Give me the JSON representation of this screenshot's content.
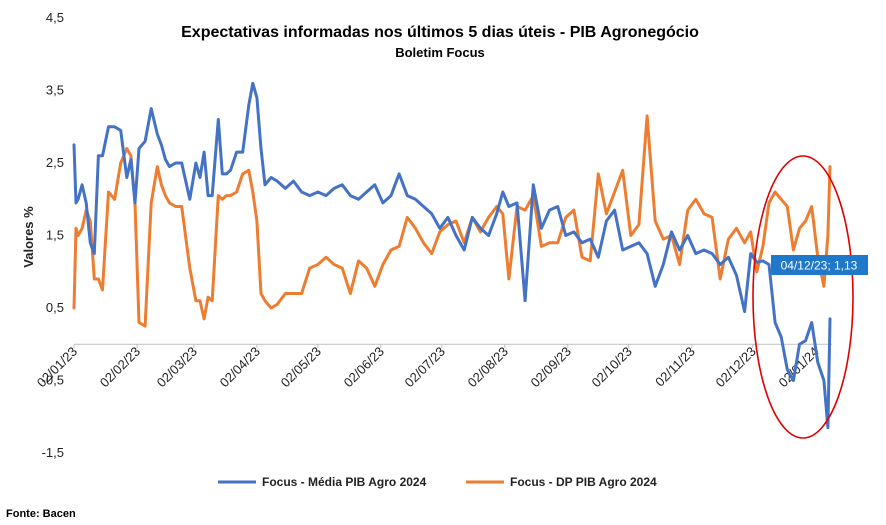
{
  "chart_data": {
    "type": "line",
    "title": "Expectativas informadas nos últimos 5 dias úteis - PIB Agronegócio",
    "subtitle": "Boletim Focus",
    "ylabel": "Valores %",
    "xlabel": "",
    "ylim": [
      -1.5,
      4.5
    ],
    "yticks": [
      "4,5",
      "3,5",
      "2,5",
      "1,5",
      "0,5",
      "-0,5",
      "-1,5"
    ],
    "yticks_values": [
      4.5,
      3.5,
      2.5,
      1.5,
      0.5,
      -0.5,
      -1.5
    ],
    "xlim": [
      "2023-01-02",
      "2024-01-10"
    ],
    "xticks": [
      "02/01/23",
      "02/02/23",
      "02/03/23",
      "02/04/23",
      "02/05/23",
      "02/06/23",
      "02/07/23",
      "02/08/23",
      "02/09/23",
      "02/10/23",
      "02/11/23",
      "02/12/23",
      "02/01/24"
    ],
    "xticks_dates": [
      "2023-01-02",
      "2023-02-02",
      "2023-03-02",
      "2023-04-02",
      "2023-05-02",
      "2023-06-02",
      "2023-07-02",
      "2023-08-02",
      "2023-09-02",
      "2023-10-02",
      "2023-11-02",
      "2023-12-02",
      "2024-01-02"
    ],
    "grid": false,
    "legend": "bottom",
    "annotation": {
      "text": "04/12/23; 1,13",
      "x": "2023-12-04",
      "y": 1.13,
      "series": "Focus - Média PIB Agro 2024"
    },
    "series": [
      {
        "name": "Focus - Média PIB Agro 2024",
        "color": "#4472c4",
        "x": [
          "2023-01-02",
          "2023-01-03",
          "2023-01-04",
          "2023-01-06",
          "2023-01-08",
          "2023-01-10",
          "2023-01-12",
          "2023-01-14",
          "2023-01-16",
          "2023-01-19",
          "2023-01-22",
          "2023-01-25",
          "2023-01-28",
          "2023-01-30",
          "2023-02-01",
          "2023-02-03",
          "2023-02-06",
          "2023-02-09",
          "2023-02-12",
          "2023-02-14",
          "2023-02-16",
          "2023-02-18",
          "2023-02-21",
          "2023-02-24",
          "2023-02-28",
          "2023-03-03",
          "2023-03-05",
          "2023-03-07",
          "2023-03-09",
          "2023-03-11",
          "2023-03-14",
          "2023-03-16",
          "2023-03-18",
          "2023-03-20",
          "2023-03-23",
          "2023-03-26",
          "2023-03-29",
          "2023-03-31",
          "2023-04-02",
          "2023-04-04",
          "2023-04-06",
          "2023-04-09",
          "2023-04-12",
          "2023-04-16",
          "2023-04-20",
          "2023-04-24",
          "2023-04-28",
          "2023-05-02",
          "2023-05-06",
          "2023-05-10",
          "2023-05-14",
          "2023-05-18",
          "2023-05-22",
          "2023-05-26",
          "2023-05-30",
          "2023-06-03",
          "2023-06-07",
          "2023-06-11",
          "2023-06-15",
          "2023-06-19",
          "2023-06-23",
          "2023-06-27",
          "2023-07-01",
          "2023-07-05",
          "2023-07-09",
          "2023-07-13",
          "2023-07-17",
          "2023-07-21",
          "2023-07-25",
          "2023-07-29",
          "2023-08-01",
          "2023-08-04",
          "2023-08-08",
          "2023-08-12",
          "2023-08-16",
          "2023-08-20",
          "2023-08-24",
          "2023-08-28",
          "2023-09-01",
          "2023-09-05",
          "2023-09-09",
          "2023-09-13",
          "2023-09-17",
          "2023-09-21",
          "2023-09-25",
          "2023-09-29",
          "2023-10-03",
          "2023-10-07",
          "2023-10-11",
          "2023-10-15",
          "2023-10-19",
          "2023-10-23",
          "2023-10-27",
          "2023-10-31",
          "2023-11-04",
          "2023-11-08",
          "2023-11-12",
          "2023-11-16",
          "2023-11-20",
          "2023-11-24",
          "2023-11-28",
          "2023-12-01",
          "2023-12-04",
          "2023-12-07",
          "2023-12-10",
          "2023-12-13",
          "2023-12-16",
          "2023-12-19",
          "2023-12-22",
          "2023-12-25",
          "2023-12-28",
          "2023-12-31",
          "2024-01-03",
          "2024-01-06",
          "2024-01-08",
          "2024-01-09"
        ],
        "values": [
          2.75,
          1.95,
          2.0,
          2.2,
          1.95,
          1.4,
          1.25,
          2.6,
          2.6,
          3.0,
          3.0,
          2.95,
          2.3,
          2.55,
          1.95,
          2.7,
          2.8,
          3.25,
          2.9,
          2.75,
          2.55,
          2.45,
          2.5,
          2.5,
          2.0,
          2.5,
          2.3,
          2.65,
          2.05,
          2.05,
          3.1,
          2.35,
          2.35,
          2.4,
          2.65,
          2.65,
          3.3,
          3.6,
          3.4,
          2.7,
          2.2,
          2.3,
          2.25,
          2.15,
          2.25,
          2.1,
          2.05,
          2.1,
          2.05,
          2.15,
          2.2,
          2.05,
          2.0,
          2.1,
          2.2,
          1.95,
          2.05,
          2.35,
          2.05,
          2.0,
          1.9,
          1.8,
          1.6,
          1.75,
          1.5,
          1.3,
          1.75,
          1.6,
          1.5,
          1.8,
          2.1,
          1.9,
          1.95,
          0.6,
          2.2,
          1.6,
          1.85,
          1.9,
          1.5,
          1.55,
          1.4,
          1.45,
          1.2,
          1.7,
          1.85,
          1.3,
          1.35,
          1.4,
          1.25,
          0.8,
          1.1,
          1.55,
          1.3,
          1.5,
          1.25,
          1.3,
          1.25,
          1.1,
          1.2,
          0.95,
          0.45,
          1.25,
          1.13,
          1.15,
          1.1,
          0.3,
          0.1,
          -0.35,
          -0.5,
          0.0,
          0.05,
          0.3,
          -0.25,
          -0.5,
          -1.15,
          0.35
        ]
      },
      {
        "name": "Focus - DP PIB Agro 2024",
        "color": "#ed7d31",
        "x": [
          "2023-01-02",
          "2023-01-03",
          "2023-01-04",
          "2023-01-06",
          "2023-01-08",
          "2023-01-10",
          "2023-01-12",
          "2023-01-14",
          "2023-01-16",
          "2023-01-19",
          "2023-01-22",
          "2023-01-25",
          "2023-01-28",
          "2023-01-30",
          "2023-02-01",
          "2023-02-03",
          "2023-02-06",
          "2023-02-09",
          "2023-02-12",
          "2023-02-14",
          "2023-02-16",
          "2023-02-18",
          "2023-02-21",
          "2023-02-24",
          "2023-02-28",
          "2023-03-03",
          "2023-03-05",
          "2023-03-07",
          "2023-03-09",
          "2023-03-11",
          "2023-03-14",
          "2023-03-16",
          "2023-03-18",
          "2023-03-20",
          "2023-03-23",
          "2023-03-26",
          "2023-03-29",
          "2023-03-31",
          "2023-04-02",
          "2023-04-04",
          "2023-04-06",
          "2023-04-09",
          "2023-04-12",
          "2023-04-16",
          "2023-04-20",
          "2023-04-24",
          "2023-04-28",
          "2023-05-02",
          "2023-05-06",
          "2023-05-10",
          "2023-05-14",
          "2023-05-18",
          "2023-05-22",
          "2023-05-26",
          "2023-05-30",
          "2023-06-03",
          "2023-06-07",
          "2023-06-11",
          "2023-06-15",
          "2023-06-19",
          "2023-06-23",
          "2023-06-27",
          "2023-07-01",
          "2023-07-05",
          "2023-07-09",
          "2023-07-13",
          "2023-07-17",
          "2023-07-21",
          "2023-07-25",
          "2023-07-29",
          "2023-08-01",
          "2023-08-04",
          "2023-08-08",
          "2023-08-12",
          "2023-08-16",
          "2023-08-20",
          "2023-08-24",
          "2023-08-28",
          "2023-09-01",
          "2023-09-05",
          "2023-09-09",
          "2023-09-13",
          "2023-09-17",
          "2023-09-21",
          "2023-09-25",
          "2023-09-29",
          "2023-10-03",
          "2023-10-07",
          "2023-10-11",
          "2023-10-15",
          "2023-10-19",
          "2023-10-23",
          "2023-10-27",
          "2023-10-31",
          "2023-11-04",
          "2023-11-08",
          "2023-11-12",
          "2023-11-16",
          "2023-11-20",
          "2023-11-24",
          "2023-11-28",
          "2023-12-01",
          "2023-12-04",
          "2023-12-07",
          "2023-12-10",
          "2023-12-13",
          "2023-12-16",
          "2023-12-19",
          "2023-12-22",
          "2023-12-25",
          "2023-12-28",
          "2023-12-31",
          "2024-01-03",
          "2024-01-06",
          "2024-01-08",
          "2024-01-09"
        ],
        "values": [
          0.5,
          1.6,
          1.5,
          1.6,
          1.85,
          1.7,
          0.9,
          0.9,
          0.75,
          2.1,
          2.0,
          2.5,
          2.7,
          2.6,
          1.95,
          0.3,
          0.25,
          1.95,
          2.45,
          2.2,
          2.05,
          1.95,
          1.9,
          1.9,
          1.05,
          0.6,
          0.6,
          0.35,
          0.65,
          0.6,
          2.05,
          2.0,
          2.05,
          2.05,
          2.1,
          2.35,
          2.4,
          2.1,
          1.7,
          0.7,
          0.6,
          0.5,
          0.55,
          0.7,
          0.7,
          0.7,
          1.05,
          1.1,
          1.2,
          1.1,
          1.05,
          0.7,
          1.15,
          1.05,
          0.8,
          1.1,
          1.3,
          1.35,
          1.75,
          1.6,
          1.4,
          1.25,
          1.55,
          1.65,
          1.7,
          1.4,
          1.75,
          1.55,
          1.75,
          1.9,
          1.8,
          0.9,
          1.9,
          1.85,
          2.05,
          1.35,
          1.4,
          1.4,
          1.75,
          1.85,
          1.2,
          1.15,
          2.35,
          1.8,
          2.1,
          2.4,
          1.5,
          1.65,
          3.15,
          1.7,
          1.45,
          1.5,
          1.1,
          1.85,
          2.0,
          1.8,
          1.75,
          0.9,
          1.45,
          1.6,
          1.4,
          1.55,
          1.0,
          1.35,
          1.95,
          2.1,
          2.0,
          1.9,
          1.3,
          1.6,
          1.7,
          1.9,
          1.2,
          0.8,
          1.5,
          2.45
        ]
      }
    ]
  },
  "source": "Fonte: Bacen"
}
